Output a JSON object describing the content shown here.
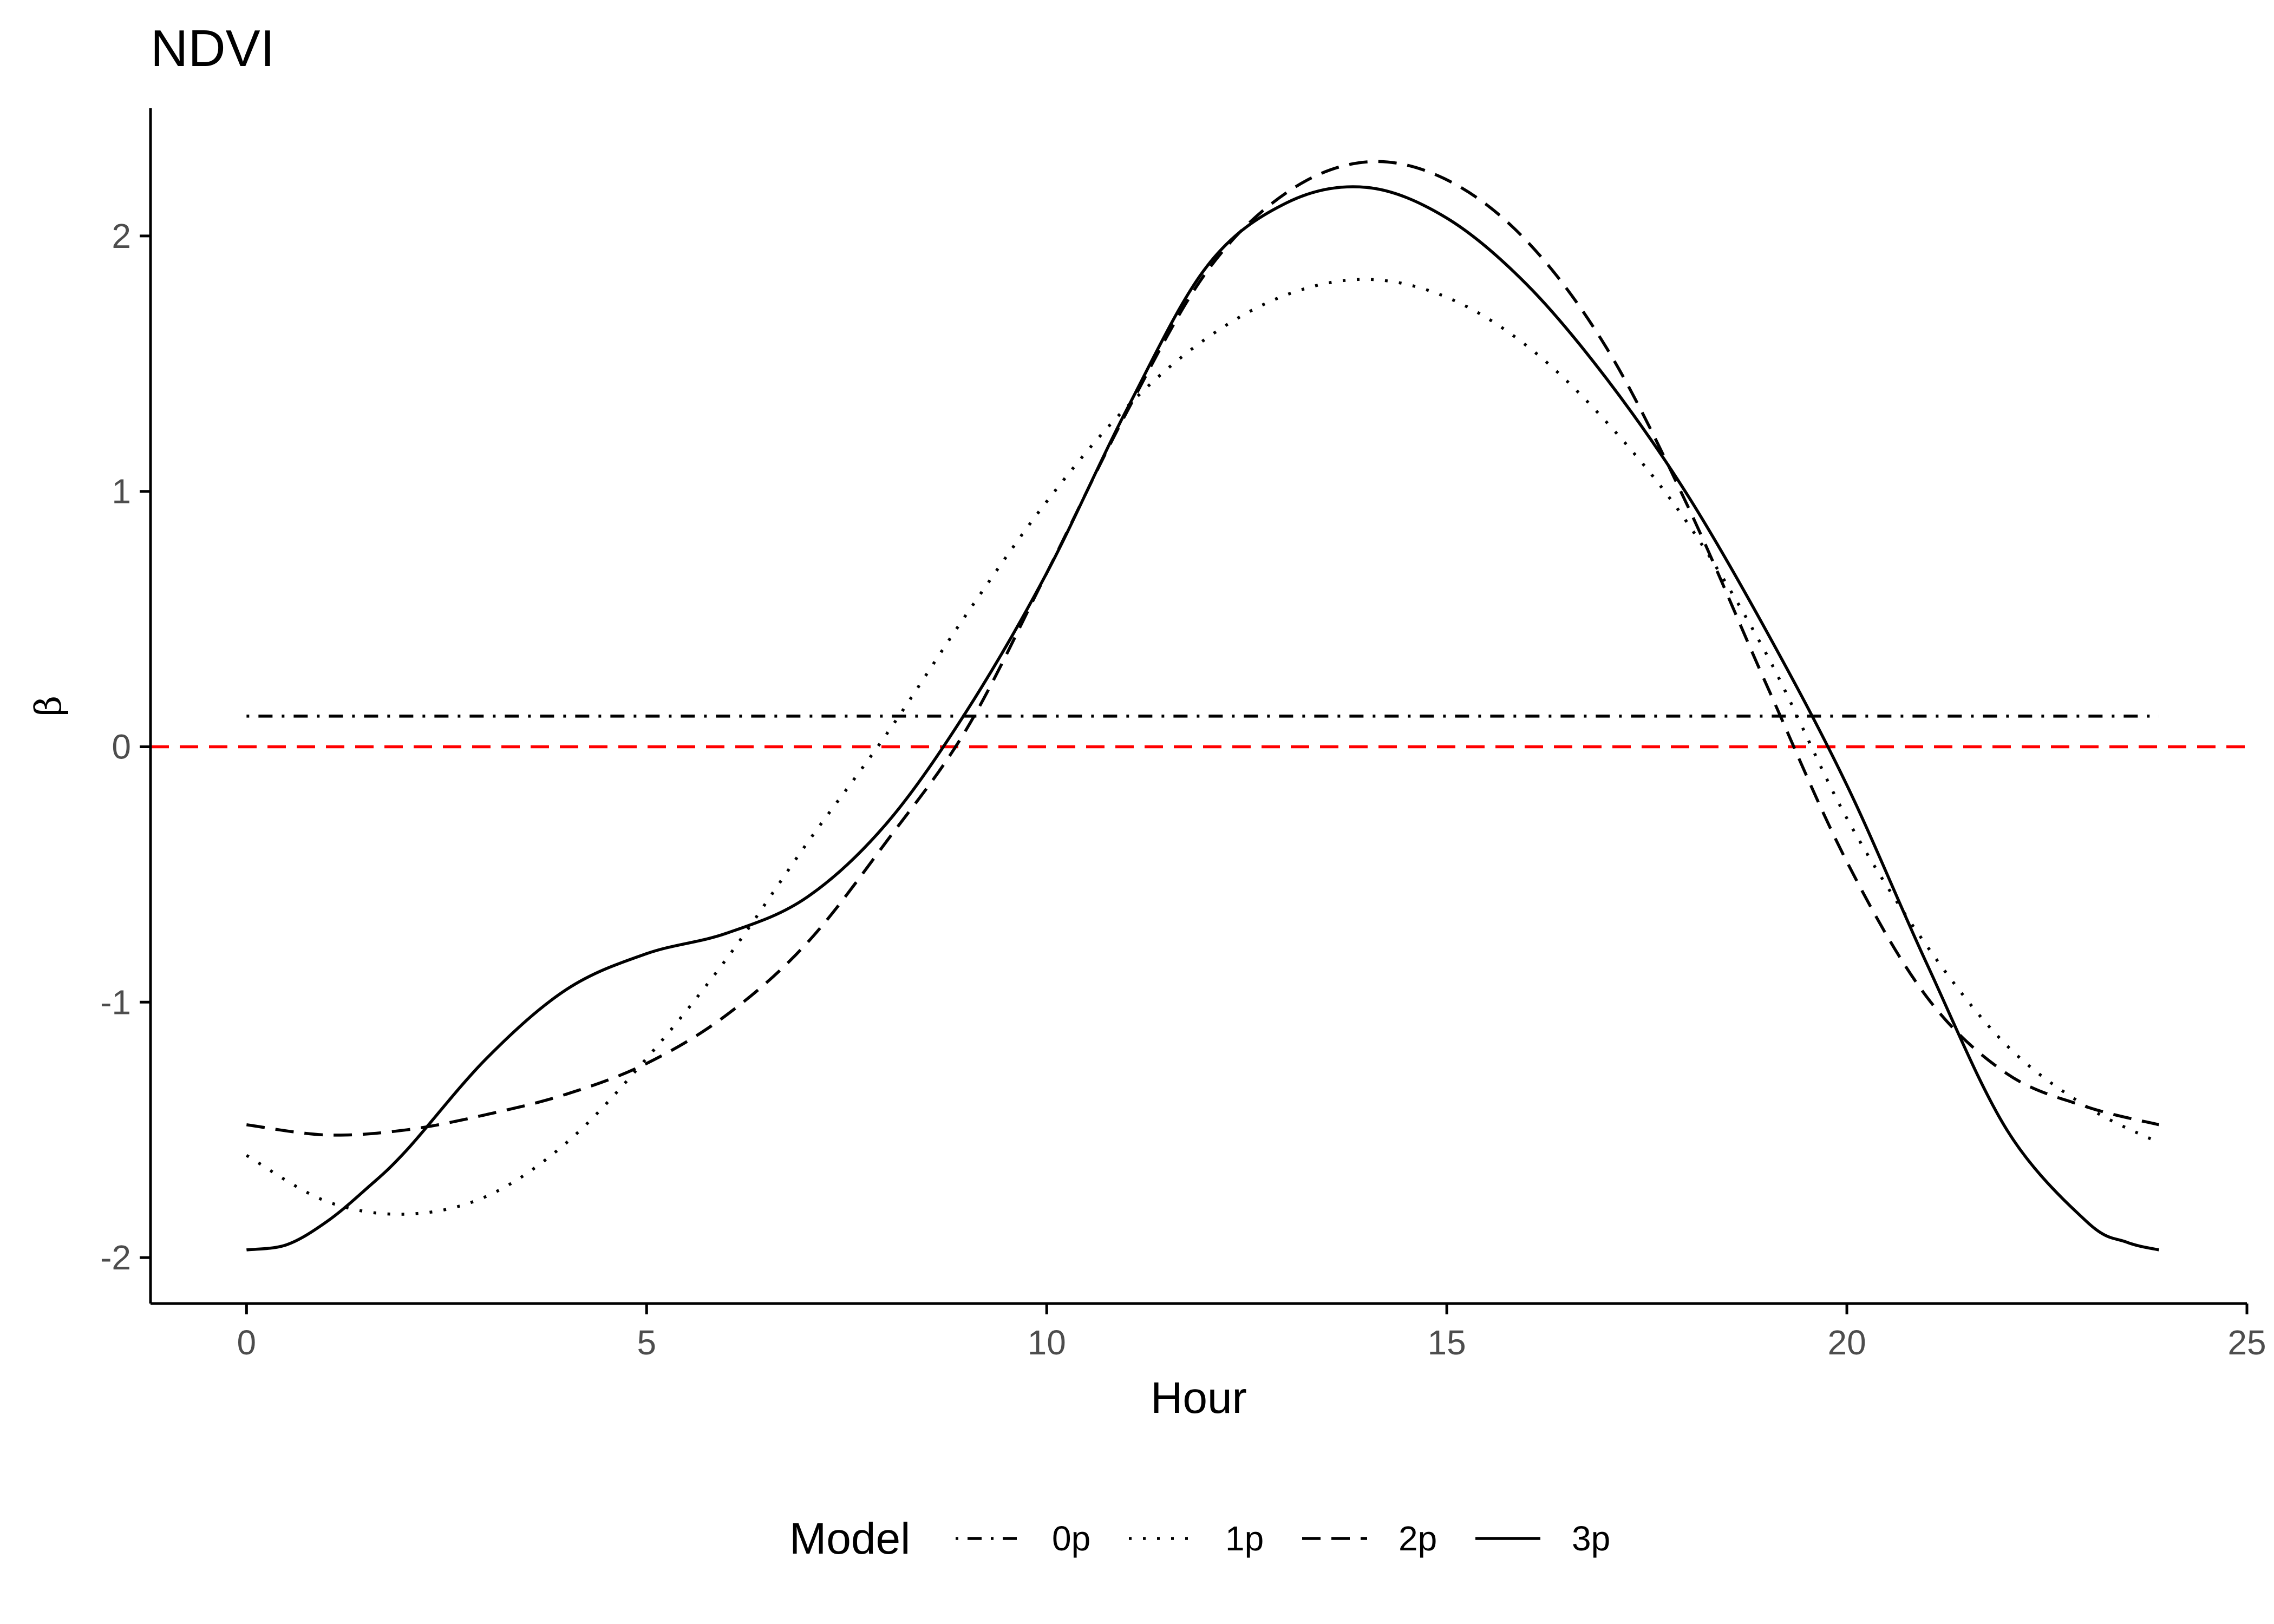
{
  "chart_data": {
    "type": "line",
    "title": "NDVI",
    "xlabel": "Hour",
    "ylabel": "β",
    "xlim": [
      -1.2,
      25
    ],
    "ylim": [
      -2.18,
      2.5
    ],
    "x_ticks": [
      0,
      5,
      10,
      15,
      20,
      25
    ],
    "y_ticks": [
      -2,
      -1,
      0,
      1,
      2
    ],
    "x_tick_labels": [
      "0",
      "5",
      "10",
      "15",
      "20",
      "25"
    ],
    "y_tick_labels": [
      "-2",
      "-1",
      "0",
      "1",
      "2"
    ],
    "grid": false,
    "legend": {
      "title": "Model",
      "position": "bottom"
    },
    "reference_line": {
      "y": 0,
      "color": "#ff0000",
      "style": "dashed"
    },
    "series": [
      {
        "name": "0p",
        "style": "dotdash",
        "color": "#000000",
        "x": [
          0,
          23.9
        ],
        "y": [
          0.12,
          0.12
        ]
      },
      {
        "name": "1p",
        "style": "dotted",
        "color": "#000000",
        "x": [
          0,
          1,
          2,
          3,
          4,
          5,
          6,
          7,
          8,
          9,
          10,
          11,
          12,
          13,
          14,
          15,
          16,
          17,
          18,
          19,
          20,
          21,
          22,
          23,
          23.9
        ],
        "y": [
          -1.6,
          -1.78,
          -1.83,
          -1.76,
          -1.55,
          -1.22,
          -0.83,
          -0.38,
          0.05,
          0.52,
          0.96,
          1.33,
          1.6,
          1.77,
          1.83,
          1.76,
          1.57,
          1.27,
          0.88,
          0.36,
          -0.28,
          -0.78,
          -1.17,
          -1.41,
          -1.55
        ]
      },
      {
        "name": "2p",
        "style": "dashed",
        "color": "#000000",
        "x": [
          0,
          1,
          2,
          3,
          4,
          5,
          6,
          7,
          8,
          9,
          10,
          11,
          12,
          13,
          14,
          15,
          16,
          17,
          18,
          19,
          20,
          21,
          22,
          23,
          23.9
        ],
        "y": [
          -1.48,
          -1.52,
          -1.5,
          -1.44,
          -1.36,
          -1.24,
          -1.05,
          -0.77,
          -0.37,
          0.07,
          0.68,
          1.31,
          1.86,
          2.17,
          2.29,
          2.22,
          1.98,
          1.56,
          0.95,
          0.24,
          -0.45,
          -0.98,
          -1.28,
          -1.41,
          -1.48
        ]
      },
      {
        "name": "3p",
        "style": "solid",
        "color": "#000000",
        "x": [
          0,
          0.5,
          1,
          1.5,
          2,
          3,
          4,
          5,
          6,
          7,
          8,
          9,
          10,
          11,
          12,
          13,
          14,
          15,
          16,
          17,
          18,
          19,
          20,
          21,
          22,
          23,
          23.5,
          23.9
        ],
        "y": [
          -1.97,
          -1.95,
          -1.86,
          -1.73,
          -1.58,
          -1.22,
          -0.95,
          -0.81,
          -0.73,
          -0.59,
          -0.3,
          0.14,
          0.68,
          1.32,
          1.88,
          2.13,
          2.19,
          2.07,
          1.81,
          1.44,
          0.99,
          0.45,
          -0.15,
          -0.85,
          -1.5,
          -1.86,
          -1.94,
          -1.97
        ]
      }
    ]
  }
}
